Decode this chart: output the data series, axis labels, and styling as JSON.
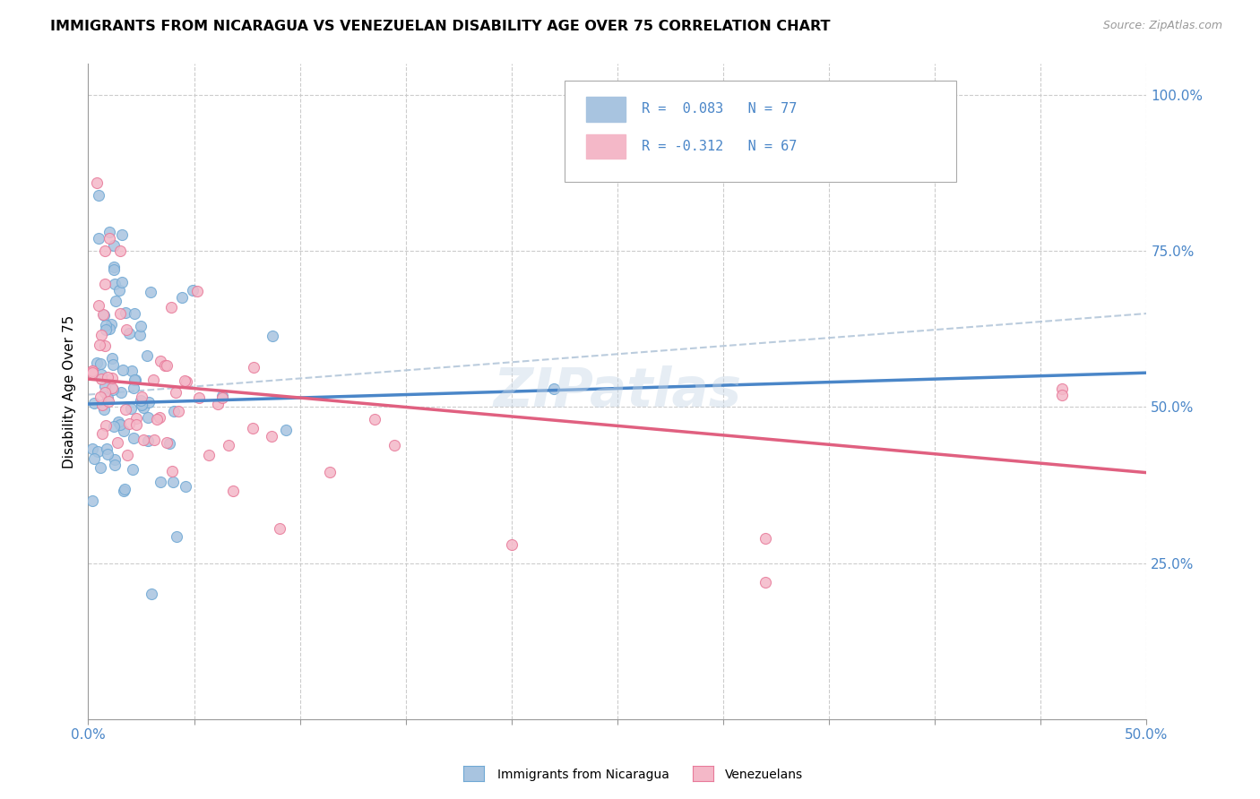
{
  "title": "IMMIGRANTS FROM NICARAGUA VS VENEZUELAN DISABILITY AGE OVER 75 CORRELATION CHART",
  "source": "Source: ZipAtlas.com",
  "ylabel": "Disability Age Over 75",
  "legend_label1": "Immigrants from Nicaragua",
  "legend_label2": "Venezuelans",
  "right_ytick_labels": [
    "25.0%",
    "50.0%",
    "75.0%",
    "100.0%"
  ],
  "right_ytick_vals": [
    0.25,
    0.5,
    0.75,
    1.0
  ],
  "color_blue_fill": "#a8c4e0",
  "color_blue_edge": "#6fa8d4",
  "color_pink_fill": "#f4b8c8",
  "color_pink_edge": "#e87a9a",
  "color_trendline_blue": "#4a86c8",
  "color_trendline_pink": "#e06080",
  "color_trendline_gray": "#b0c4d8",
  "color_grid": "#cccccc",
  "color_axis_label": "#4a86c8",
  "watermark": "ZIPatlas",
  "xlim": [
    0,
    0.5
  ],
  "ylim": [
    0,
    1.05
  ],
  "nic_trendline": [
    0.505,
    0.555
  ],
  "ven_trendline": [
    0.545,
    0.395
  ],
  "gray_dashed": [
    0.52,
    0.65
  ]
}
